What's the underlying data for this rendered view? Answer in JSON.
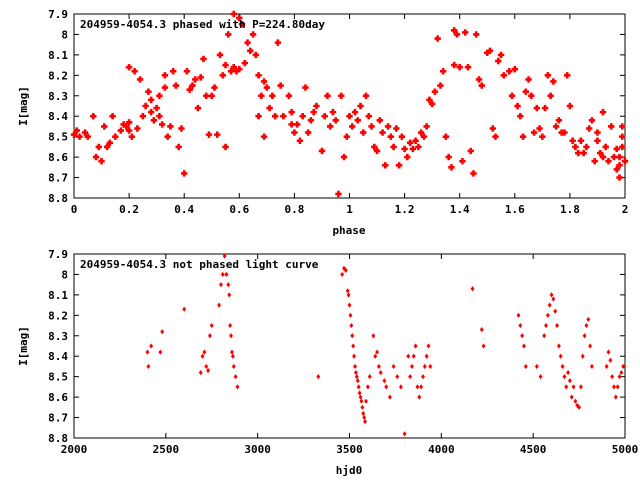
{
  "chart_data": [
    {
      "type": "scatter",
      "title": "204959-4054.3 phased with P=224.80day",
      "xlabel": "phase",
      "ylabel": "I[mag]",
      "xlim": [
        0,
        2
      ],
      "ylim": [
        8.8,
        7.9
      ],
      "y_inverted": true,
      "xticks": [
        "0",
        "0.2",
        "0.4",
        "0.6",
        "0.8",
        "1",
        "1.2",
        "1.4",
        "1.6",
        "1.8",
        "2"
      ],
      "xtick_values": [
        0,
        0.2,
        0.4,
        0.6,
        0.8,
        1.0,
        1.2,
        1.4,
        1.6,
        1.8,
        2.0
      ],
      "yticks": [
        "7.9",
        "8",
        "8.1",
        "8.2",
        "8.3",
        "8.4",
        "8.5",
        "8.6",
        "8.7",
        "8.8"
      ],
      "ytick_values": [
        7.9,
        8.0,
        8.1,
        8.2,
        8.3,
        8.4,
        8.5,
        8.6,
        8.7,
        8.8
      ],
      "marker": "cross",
      "color": "#ff0000",
      "points": [
        [
          0.0,
          8.49
        ],
        [
          0.01,
          8.47
        ],
        [
          0.02,
          8.5
        ],
        [
          0.04,
          8.48
        ],
        [
          0.05,
          8.5
        ],
        [
          0.07,
          8.4
        ],
        [
          0.08,
          8.6
        ],
        [
          0.09,
          8.55
        ],
        [
          0.1,
          8.62
        ],
        [
          0.11,
          8.45
        ],
        [
          0.12,
          8.55
        ],
        [
          0.13,
          8.53
        ],
        [
          0.14,
          8.4
        ],
        [
          0.15,
          8.5
        ],
        [
          0.17,
          8.47
        ],
        [
          0.18,
          8.44
        ],
        [
          0.19,
          8.45
        ],
        [
          0.2,
          8.47
        ],
        [
          0.2,
          8.43
        ],
        [
          0.21,
          8.5
        ],
        [
          0.2,
          8.16
        ],
        [
          0.22,
          8.18
        ],
        [
          0.23,
          8.46
        ],
        [
          0.24,
          8.22
        ],
        [
          0.25,
          8.4
        ],
        [
          0.26,
          8.35
        ],
        [
          0.27,
          8.28
        ],
        [
          0.28,
          8.38
        ],
        [
          0.28,
          8.32
        ],
        [
          0.29,
          8.42
        ],
        [
          0.3,
          8.36
        ],
        [
          0.31,
          8.3
        ],
        [
          0.31,
          8.4
        ],
        [
          0.32,
          8.44
        ],
        [
          0.33,
          8.2
        ],
        [
          0.33,
          8.26
        ],
        [
          0.34,
          8.5
        ],
        [
          0.35,
          8.45
        ],
        [
          0.36,
          8.18
        ],
        [
          0.37,
          8.25
        ],
        [
          0.38,
          8.55
        ],
        [
          0.39,
          8.46
        ],
        [
          0.4,
          8.68
        ],
        [
          0.41,
          8.18
        ],
        [
          0.42,
          8.27
        ],
        [
          0.43,
          8.25
        ],
        [
          0.44,
          8.22
        ],
        [
          0.45,
          8.36
        ],
        [
          0.46,
          8.21
        ],
        [
          0.47,
          8.12
        ],
        [
          0.48,
          8.3
        ],
        [
          0.49,
          8.49
        ],
        [
          0.5,
          8.3
        ],
        [
          0.51,
          8.26
        ],
        [
          0.52,
          8.49
        ],
        [
          0.53,
          8.1
        ],
        [
          0.54,
          8.2
        ],
        [
          0.55,
          8.15
        ],
        [
          0.55,
          8.55
        ],
        [
          0.56,
          8.0
        ],
        [
          0.57,
          8.18
        ],
        [
          0.58,
          7.9
        ],
        [
          0.58,
          8.16
        ],
        [
          0.59,
          8.18
        ],
        [
          0.6,
          8.17
        ],
        [
          0.6,
          7.92
        ],
        [
          0.61,
          7.95
        ],
        [
          0.62,
          8.14
        ],
        [
          0.63,
          8.04
        ],
        [
          0.64,
          8.08
        ],
        [
          0.65,
          8.0
        ],
        [
          0.66,
          8.1
        ],
        [
          0.67,
          8.2
        ],
        [
          0.67,
          8.4
        ],
        [
          0.68,
          8.3
        ],
        [
          0.69,
          8.23
        ],
        [
          0.69,
          8.5
        ],
        [
          0.7,
          8.26
        ],
        [
          0.71,
          8.36
        ],
        [
          0.72,
          8.3
        ],
        [
          0.73,
          8.4
        ],
        [
          0.74,
          8.04
        ],
        [
          0.75,
          8.25
        ],
        [
          0.76,
          8.4
        ],
        [
          0.78,
          8.3
        ],
        [
          0.79,
          8.38
        ],
        [
          0.79,
          8.44
        ],
        [
          0.8,
          8.48
        ],
        [
          0.81,
          8.44
        ],
        [
          0.82,
          8.52
        ],
        [
          0.83,
          8.4
        ],
        [
          0.84,
          8.26
        ],
        [
          0.85,
          8.48
        ],
        [
          0.86,
          8.42
        ],
        [
          0.87,
          8.38
        ],
        [
          0.88,
          8.35
        ],
        [
          0.9,
          8.57
        ],
        [
          0.91,
          8.4
        ],
        [
          0.92,
          8.3
        ],
        [
          0.93,
          8.45
        ],
        [
          0.94,
          8.38
        ],
        [
          0.95,
          8.42
        ],
        [
          0.96,
          8.78
        ],
        [
          0.97,
          8.3
        ],
        [
          0.98,
          8.6
        ],
        [
          0.99,
          8.5
        ],
        [
          1.0,
          8.4
        ],
        [
          1.01,
          8.45
        ],
        [
          1.02,
          8.38
        ],
        [
          1.03,
          8.42
        ],
        [
          1.04,
          8.35
        ],
        [
          1.05,
          8.48
        ],
        [
          1.06,
          8.3
        ],
        [
          1.07,
          8.4
        ],
        [
          1.08,
          8.45
        ],
        [
          1.09,
          8.55
        ],
        [
          1.1,
          8.57
        ],
        [
          1.11,
          8.42
        ],
        [
          1.12,
          8.48
        ],
        [
          1.13,
          8.64
        ],
        [
          1.14,
          8.45
        ],
        [
          1.15,
          8.5
        ],
        [
          1.16,
          8.55
        ],
        [
          1.17,
          8.46
        ],
        [
          1.18,
          8.64
        ],
        [
          1.19,
          8.5
        ],
        [
          1.2,
          8.56
        ],
        [
          1.21,
          8.6
        ],
        [
          1.22,
          8.53
        ],
        [
          1.23,
          8.56
        ],
        [
          1.24,
          8.52
        ],
        [
          1.25,
          8.55
        ],
        [
          1.26,
          8.48
        ],
        [
          1.27,
          8.5
        ],
        [
          1.28,
          8.45
        ],
        [
          1.29,
          8.32
        ],
        [
          1.3,
          8.34
        ],
        [
          1.31,
          8.28
        ],
        [
          1.32,
          8.02
        ],
        [
          1.33,
          8.25
        ],
        [
          1.34,
          8.18
        ],
        [
          1.35,
          8.5
        ],
        [
          1.36,
          8.6
        ],
        [
          1.37,
          8.65
        ],
        [
          1.38,
          7.98
        ],
        [
          1.38,
          8.15
        ],
        [
          1.39,
          8.0
        ],
        [
          1.4,
          8.16
        ],
        [
          1.41,
          8.62
        ],
        [
          1.42,
          7.99
        ],
        [
          1.43,
          8.16
        ],
        [
          1.44,
          8.57
        ],
        [
          1.45,
          8.68
        ],
        [
          1.46,
          8.0
        ],
        [
          1.47,
          8.22
        ],
        [
          1.48,
          8.25
        ],
        [
          1.5,
          8.09
        ],
        [
          1.51,
          8.08
        ],
        [
          1.52,
          8.46
        ],
        [
          1.53,
          8.5
        ],
        [
          1.54,
          8.13
        ],
        [
          1.55,
          8.1
        ],
        [
          1.56,
          8.2
        ],
        [
          1.58,
          8.18
        ],
        [
          1.59,
          8.3
        ],
        [
          1.6,
          8.17
        ],
        [
          1.61,
          8.35
        ],
        [
          1.62,
          8.4
        ],
        [
          1.63,
          8.5
        ],
        [
          1.64,
          8.28
        ],
        [
          1.65,
          8.22
        ],
        [
          1.66,
          8.3
        ],
        [
          1.67,
          8.48
        ],
        [
          1.68,
          8.36
        ],
        [
          1.69,
          8.46
        ],
        [
          1.7,
          8.5
        ],
        [
          1.71,
          8.36
        ],
        [
          1.72,
          8.2
        ],
        [
          1.73,
          8.3
        ],
        [
          1.74,
          8.23
        ],
        [
          1.75,
          8.45
        ],
        [
          1.76,
          8.42
        ],
        [
          1.77,
          8.48
        ],
        [
          1.78,
          8.48
        ],
        [
          1.79,
          8.2
        ],
        [
          1.8,
          8.35
        ],
        [
          1.81,
          8.52
        ],
        [
          1.82,
          8.55
        ],
        [
          1.83,
          8.58
        ],
        [
          1.84,
          8.52
        ],
        [
          1.85,
          8.58
        ],
        [
          1.86,
          8.55
        ],
        [
          1.87,
          8.46
        ],
        [
          1.88,
          8.42
        ],
        [
          1.89,
          8.62
        ],
        [
          1.9,
          8.48
        ],
        [
          1.9,
          8.52
        ],
        [
          1.91,
          8.58
        ],
        [
          1.92,
          8.38
        ],
        [
          1.92,
          8.6
        ],
        [
          1.93,
          8.55
        ],
        [
          1.94,
          8.62
        ],
        [
          1.95,
          8.45
        ],
        [
          1.96,
          8.6
        ],
        [
          1.97,
          8.56
        ],
        [
          1.97,
          8.66
        ],
        [
          1.98,
          8.7
        ],
        [
          1.98,
          8.6
        ],
        [
          1.98,
          8.64
        ],
        [
          1.99,
          8.55
        ],
        [
          1.99,
          8.5
        ],
        [
          1.99,
          8.45
        ],
        [
          2.0,
          8.62
        ]
      ]
    },
    {
      "type": "scatter",
      "title": "204959-4054.3 not phased light curve",
      "xlabel": "hjd0",
      "ylabel": "I[mag]",
      "xlim": [
        2000,
        5000
      ],
      "ylim": [
        8.8,
        7.9
      ],
      "y_inverted": true,
      "xticks": [
        "2000",
        "2500",
        "3000",
        "3500",
        "4000",
        "4500",
        "5000"
      ],
      "xtick_values": [
        2000,
        2500,
        3000,
        3500,
        4000,
        4500,
        5000
      ],
      "yticks": [
        "7.9",
        "8",
        "8.1",
        "8.2",
        "8.3",
        "8.4",
        "8.5",
        "8.6",
        "8.7",
        "8.8"
      ],
      "ytick_values": [
        7.9,
        8.0,
        8.1,
        8.2,
        8.3,
        8.4,
        8.5,
        8.6,
        8.7,
        8.8
      ],
      "marker": "diamond",
      "color": "#ff0000",
      "points": [
        [
          2400,
          8.38
        ],
        [
          2405,
          8.45
        ],
        [
          2420,
          8.35
        ],
        [
          2470,
          8.38
        ],
        [
          2480,
          8.28
        ],
        [
          2600,
          8.17
        ],
        [
          2690,
          8.48
        ],
        [
          2700,
          8.4
        ],
        [
          2710,
          8.38
        ],
        [
          2720,
          8.45
        ],
        [
          2730,
          8.47
        ],
        [
          2740,
          8.3
        ],
        [
          2750,
          8.25
        ],
        [
          2790,
          8.15
        ],
        [
          2800,
          8.05
        ],
        [
          2810,
          8.0
        ],
        [
          2820,
          7.91
        ],
        [
          2830,
          8.0
        ],
        [
          2840,
          8.05
        ],
        [
          2845,
          8.1
        ],
        [
          2850,
          8.25
        ],
        [
          2855,
          8.3
        ],
        [
          2860,
          8.38
        ],
        [
          2865,
          8.4
        ],
        [
          2870,
          8.45
        ],
        [
          2880,
          8.5
        ],
        [
          2890,
          8.55
        ],
        [
          3330,
          8.5
        ],
        [
          3460,
          8.0
        ],
        [
          3470,
          7.97
        ],
        [
          3480,
          7.98
        ],
        [
          3490,
          8.08
        ],
        [
          3495,
          8.1
        ],
        [
          3500,
          8.15
        ],
        [
          3505,
          8.2
        ],
        [
          3510,
          8.25
        ],
        [
          3515,
          8.3
        ],
        [
          3520,
          8.35
        ],
        [
          3525,
          8.4
        ],
        [
          3530,
          8.45
        ],
        [
          3535,
          8.48
        ],
        [
          3540,
          8.5
        ],
        [
          3545,
          8.52
        ],
        [
          3550,
          8.55
        ],
        [
          3555,
          8.58
        ],
        [
          3560,
          8.6
        ],
        [
          3565,
          8.62
        ],
        [
          3570,
          8.65
        ],
        [
          3575,
          8.68
        ],
        [
          3580,
          8.7
        ],
        [
          3585,
          8.72
        ],
        [
          3590,
          8.62
        ],
        [
          3600,
          8.55
        ],
        [
          3610,
          8.5
        ],
        [
          3630,
          8.3
        ],
        [
          3640,
          8.4
        ],
        [
          3650,
          8.38
        ],
        [
          3660,
          8.45
        ],
        [
          3670,
          8.48
        ],
        [
          3690,
          8.52
        ],
        [
          3700,
          8.55
        ],
        [
          3720,
          8.6
        ],
        [
          3740,
          8.45
        ],
        [
          3760,
          8.5
        ],
        [
          3780,
          8.55
        ],
        [
          3800,
          8.78
        ],
        [
          3820,
          8.4
        ],
        [
          3830,
          8.5
        ],
        [
          3840,
          8.45
        ],
        [
          3850,
          8.4
        ],
        [
          3860,
          8.35
        ],
        [
          3870,
          8.55
        ],
        [
          3880,
          8.6
        ],
        [
          3890,
          8.55
        ],
        [
          3900,
          8.5
        ],
        [
          3910,
          8.45
        ],
        [
          3920,
          8.4
        ],
        [
          3930,
          8.35
        ],
        [
          3940,
          8.45
        ],
        [
          4170,
          8.07
        ],
        [
          4220,
          8.27
        ],
        [
          4230,
          8.35
        ],
        [
          4420,
          8.2
        ],
        [
          4430,
          8.25
        ],
        [
          4440,
          8.3
        ],
        [
          4450,
          8.35
        ],
        [
          4460,
          8.45
        ],
        [
          4520,
          8.45
        ],
        [
          4540,
          8.5
        ],
        [
          4560,
          8.3
        ],
        [
          4570,
          8.25
        ],
        [
          4580,
          8.2
        ],
        [
          4590,
          8.15
        ],
        [
          4600,
          8.1
        ],
        [
          4610,
          8.12
        ],
        [
          4620,
          8.18
        ],
        [
          4630,
          8.25
        ],
        [
          4640,
          8.35
        ],
        [
          4650,
          8.4
        ],
        [
          4660,
          8.45
        ],
        [
          4670,
          8.5
        ],
        [
          4680,
          8.55
        ],
        [
          4690,
          8.48
        ],
        [
          4700,
          8.52
        ],
        [
          4710,
          8.6
        ],
        [
          4720,
          8.55
        ],
        [
          4730,
          8.62
        ],
        [
          4740,
          8.64
        ],
        [
          4750,
          8.65
        ],
        [
          4760,
          8.55
        ],
        [
          4770,
          8.4
        ],
        [
          4780,
          8.3
        ],
        [
          4790,
          8.25
        ],
        [
          4800,
          8.22
        ],
        [
          4810,
          8.35
        ],
        [
          4820,
          8.45
        ],
        [
          4900,
          8.45
        ],
        [
          4910,
          8.38
        ],
        [
          4920,
          8.42
        ],
        [
          4930,
          8.5
        ],
        [
          4940,
          8.55
        ],
        [
          4950,
          8.6
        ],
        [
          4960,
          8.55
        ],
        [
          4970,
          8.5
        ],
        [
          4980,
          8.48
        ],
        [
          4990,
          8.45
        ]
      ]
    }
  ]
}
